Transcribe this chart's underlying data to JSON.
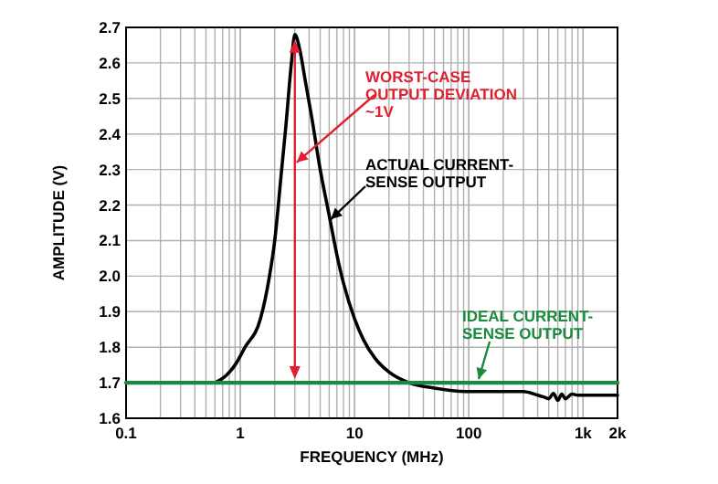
{
  "chart_data": {
    "type": "line",
    "xlabel": "FREQUENCY (MHz)",
    "ylabel": "AMPLITUDE (V)",
    "log": "x",
    "grid": true,
    "marker": "none",
    "line_style": "solid",
    "xlim": [
      0.1,
      2000
    ],
    "ylim": [
      1.6,
      2.7
    ],
    "xticks": [
      0.1,
      1,
      10,
      100,
      {
        "value": 1000,
        "label": "1k"
      },
      {
        "value": 2000,
        "label": "2k"
      }
    ],
    "yticks": [
      1.6,
      1.7,
      1.8,
      1.9,
      {
        "value": 2,
        "label": "2.0"
      },
      2.1,
      2.2,
      2.3,
      2.4,
      2.5,
      2.6,
      2.7
    ],
    "series": [
      {
        "name": "ACTUAL CURRENT-SENSE OUTPUT",
        "color": "#000000",
        "x": [
          0.6,
          0.75,
          0.9,
          1.1,
          1.5,
          1.8,
          2,
          2.3,
          2.5,
          2.8,
          3,
          3.3,
          3.7,
          4.2,
          5,
          6,
          7,
          8,
          10,
          12,
          15,
          20,
          30,
          50,
          100,
          200,
          300,
          400,
          450,
          500,
          550,
          600,
          650,
          700,
          800,
          900,
          2000
        ],
        "values": [
          1.7,
          1.72,
          1.75,
          1.8,
          1.88,
          2.0,
          2.1,
          2.3,
          2.42,
          2.6,
          2.68,
          2.64,
          2.55,
          2.45,
          2.3,
          2.17,
          2.06,
          1.98,
          1.88,
          1.82,
          1.77,
          1.73,
          1.7,
          1.685,
          1.675,
          1.675,
          1.675,
          1.665,
          1.66,
          1.655,
          1.67,
          1.65,
          1.668,
          1.655,
          1.668,
          1.665,
          1.665
        ]
      },
      {
        "name": "IDEAL CURRENT-SENSE OUTPUT",
        "color": "#1a8a3c",
        "x": [
          0.1,
          2000
        ],
        "values": [
          1.7,
          1.7
        ]
      }
    ],
    "annotations": [
      "WORST-CASE OUTPUT DEVIATION ~1V"
    ]
  }
}
